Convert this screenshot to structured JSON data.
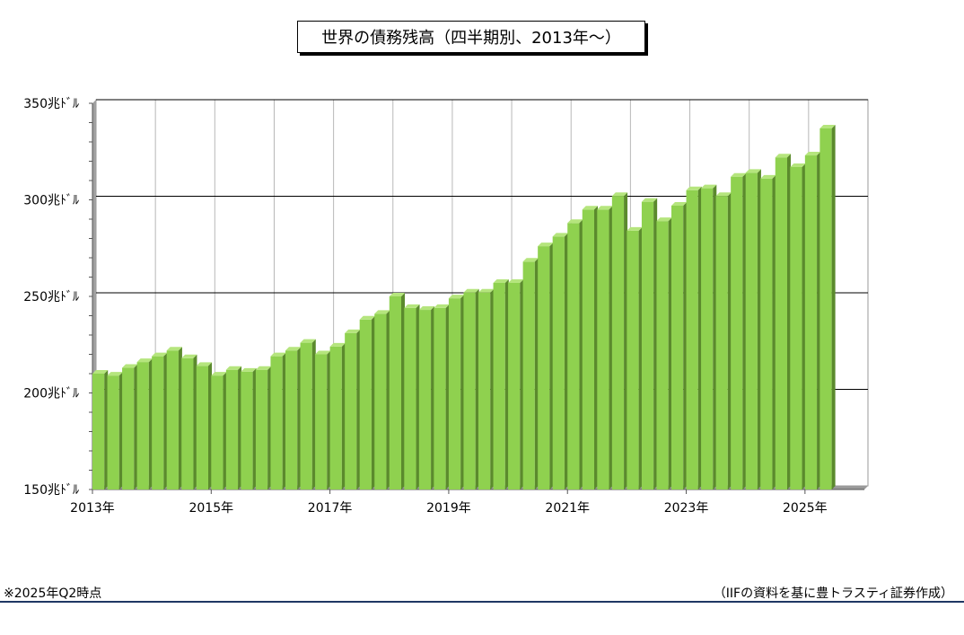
{
  "title": "世界の債務残高（四半期別、2013年～）",
  "note_left": "※2025年Q2時点",
  "note_right": "（IIFの資料を基に豊トラスティ証券作成）",
  "colors": {
    "bar_front": "#8fd14f",
    "bar_side": "#5b8a2d",
    "bar_top": "#b5e57d",
    "footer_line": "#1f3763"
  },
  "chart_data": {
    "type": "bar",
    "title": "世界の債務残高（四半期別、2013年～）",
    "xlabel": "",
    "ylabel": "",
    "ylim": [
      150,
      350
    ],
    "y_ticks": [
      150,
      200,
      250,
      300,
      350
    ],
    "y_tick_labels": [
      "150兆ﾄﾞﾙ",
      "200兆ﾄﾞﾙ",
      "250兆ﾄﾞﾙ",
      "300兆ﾄﾞﾙ",
      "350兆ﾄﾞﾙ"
    ],
    "x_tick_labels": [
      "2013年",
      "2015年",
      "2017年",
      "2019年",
      "2021年",
      "2023年",
      "2025年"
    ],
    "grid": true,
    "legend": "none",
    "categories": [
      "2013Q1",
      "2013Q2",
      "2013Q3",
      "2013Q4",
      "2014Q1",
      "2014Q2",
      "2014Q3",
      "2014Q4",
      "2015Q1",
      "2015Q2",
      "2015Q3",
      "2015Q4",
      "2016Q1",
      "2016Q2",
      "2016Q3",
      "2016Q4",
      "2017Q1",
      "2017Q2",
      "2017Q3",
      "2017Q4",
      "2018Q1",
      "2018Q2",
      "2018Q3",
      "2018Q4",
      "2019Q1",
      "2019Q2",
      "2019Q3",
      "2019Q4",
      "2020Q1",
      "2020Q2",
      "2020Q3",
      "2020Q4",
      "2021Q1",
      "2021Q2",
      "2021Q3",
      "2021Q4",
      "2022Q1",
      "2022Q2",
      "2022Q3",
      "2022Q4",
      "2023Q1",
      "2023Q2",
      "2023Q3",
      "2023Q4",
      "2024Q1",
      "2024Q2",
      "2024Q3",
      "2024Q4",
      "2025Q1",
      "2025Q2"
    ],
    "values": [
      210,
      209,
      213,
      216,
      219,
      222,
      218,
      214,
      209,
      212,
      211,
      212,
      219,
      222,
      226,
      220,
      224,
      231,
      238,
      241,
      250,
      244,
      243,
      244,
      249,
      252,
      252,
      257,
      257,
      268,
      276,
      281,
      288,
      295,
      295,
      302,
      284,
      299,
      289,
      297,
      305,
      306,
      302,
      312,
      314,
      311,
      322,
      317,
      323,
      337
    ]
  }
}
